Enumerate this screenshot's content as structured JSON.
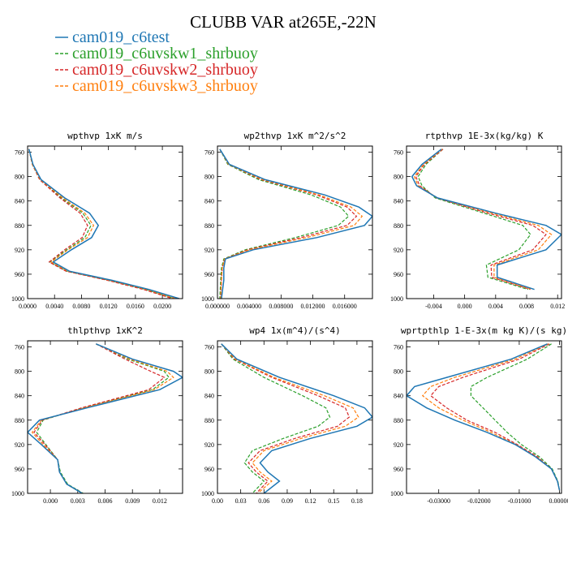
{
  "figure": {
    "title": "CLUBB VAR at265E,-22N",
    "legend": [
      {
        "label": "cam019_c6test",
        "color": "#1f77b4",
        "dash": "solid"
      },
      {
        "label": "cam019_c6uvskw1_shrbuoy",
        "color": "#2ca02c",
        "dash": "dash"
      },
      {
        "label": "cam019_c6uvskw2_shrbuoy",
        "color": "#d62728",
        "dash": "dash"
      },
      {
        "label": "cam019_c6uvskw3_shrbuoy",
        "color": "#ff7f0e",
        "dash": "dash"
      }
    ]
  },
  "chart_data": [
    {
      "type": "line",
      "title": "wpthvp 1xK m/s",
      "xlim": [
        0,
        0.023
      ],
      "ylim": [
        1000,
        750
      ],
      "xticks": [
        "0.0000",
        "0.0040",
        "0.0080",
        "0.0120",
        "0.0160",
        "0.0200"
      ],
      "xtick_values": [
        0,
        0.004,
        0.008,
        0.012,
        0.016,
        0.02
      ],
      "yticks": [
        760,
        800,
        840,
        880,
        920,
        960,
        1000
      ],
      "y": [
        755,
        780,
        805,
        835,
        860,
        880,
        900,
        920,
        940,
        955,
        970,
        985,
        1000
      ],
      "series": [
        {
          "values": [
            0.0002,
            0.0008,
            0.002,
            0.0055,
            0.0092,
            0.0105,
            0.0095,
            0.0065,
            0.0038,
            0.0062,
            0.0125,
            0.018,
            0.0225
          ]
        },
        {
          "values": [
            0.0002,
            0.0007,
            0.0018,
            0.005,
            0.0082,
            0.0094,
            0.0085,
            0.0058,
            0.0033,
            0.0058,
            0.012,
            0.0175,
            0.0218
          ]
        },
        {
          "values": [
            0.0002,
            0.0007,
            0.0018,
            0.0048,
            0.0078,
            0.0089,
            0.0081,
            0.0055,
            0.0032,
            0.0057,
            0.0118,
            0.0172,
            0.0215
          ]
        },
        {
          "values": [
            0.0002,
            0.0007,
            0.0019,
            0.0052,
            0.0085,
            0.0098,
            0.0089,
            0.006,
            0.0035,
            0.006,
            0.0122,
            0.0177,
            0.022
          ]
        }
      ]
    },
    {
      "type": "line",
      "title": "wp2thvp 1xK m^2/s^2",
      "xlim": [
        0,
        0.0195
      ],
      "ylim": [
        1000,
        750
      ],
      "xticks": [
        "0.000000",
        "0.004000",
        "0.008000",
        "0.012000",
        "0.016000"
      ],
      "xtick_values": [
        0,
        0.004,
        0.008,
        0.012,
        0.016
      ],
      "yticks": [
        760,
        800,
        840,
        880,
        920,
        960,
        1000
      ],
      "y": [
        755,
        780,
        805,
        830,
        850,
        865,
        880,
        900,
        920,
        935,
        950,
        970,
        1000
      ],
      "series": [
        {
          "values": [
            0.0003,
            0.0015,
            0.006,
            0.0135,
            0.0178,
            0.0195,
            0.0185,
            0.0125,
            0.0045,
            0.001,
            0.0008,
            0.0008,
            0.0005
          ]
        },
        {
          "values": [
            0.0003,
            0.0013,
            0.0052,
            0.0118,
            0.0155,
            0.0165,
            0.0152,
            0.0098,
            0.0035,
            0.0008,
            0.0005,
            0.0004,
            0.0003
          ]
        },
        {
          "values": [
            0.0003,
            0.0014,
            0.0055,
            0.0125,
            0.0163,
            0.0175,
            0.0163,
            0.0105,
            0.0038,
            0.0009,
            0.0006,
            0.0005,
            0.0004
          ]
        },
        {
          "values": [
            0.0003,
            0.0014,
            0.0057,
            0.0128,
            0.0168,
            0.0182,
            0.0172,
            0.0112,
            0.004,
            0.0009,
            0.0006,
            0.0005,
            0.0004
          ]
        }
      ]
    },
    {
      "type": "line",
      "title": "rtpthvp 1E-3x(kg/kg) K",
      "xlim": [
        -0.0075,
        0.0125
      ],
      "ylim": [
        1000,
        750
      ],
      "xticks": [
        "-0.004",
        "0.000",
        "0.004",
        "0.008",
        "0.012"
      ],
      "xtick_values": [
        -0.004,
        0,
        0.004,
        0.008,
        0.012
      ],
      "yticks": [
        760,
        800,
        840,
        880,
        920,
        960,
        1000
      ],
      "y": [
        755,
        780,
        800,
        815,
        835,
        860,
        880,
        895,
        920,
        945,
        965,
        985
      ],
      "series": [
        {
          "values": [
            -0.003,
            -0.0055,
            -0.0068,
            -0.0062,
            -0.0035,
            0.004,
            0.0105,
            0.0125,
            0.0105,
            0.0042,
            0.0042,
            0.009
          ]
        },
        {
          "values": [
            -0.0028,
            -0.005,
            -0.006,
            -0.0055,
            -0.0038,
            0.0025,
            0.0075,
            0.0085,
            0.007,
            0.0028,
            0.003,
            0.0082
          ]
        },
        {
          "values": [
            -0.0028,
            -0.0052,
            -0.0063,
            -0.0058,
            -0.0036,
            0.003,
            0.0088,
            0.0105,
            0.0088,
            0.0034,
            0.0035,
            0.0085
          ]
        },
        {
          "values": [
            -0.0029,
            -0.0053,
            -0.0065,
            -0.006,
            -0.0035,
            0.0035,
            0.0095,
            0.0112,
            0.0095,
            0.0038,
            0.0038,
            0.0087
          ]
        }
      ]
    },
    {
      "type": "line",
      "title": "thlpthvp 1xK^2",
      "xlim": [
        -0.0025,
        0.0145
      ],
      "ylim": [
        1000,
        750
      ],
      "xticks": [
        "0.000",
        "0.003",
        "0.006",
        "0.009",
        "0.012"
      ],
      "xtick_values": [
        0,
        0.003,
        0.006,
        0.009,
        0.012
      ],
      "yticks": [
        760,
        800,
        840,
        880,
        920,
        960,
        1000
      ],
      "y": [
        755,
        780,
        800,
        810,
        830,
        860,
        880,
        900,
        920,
        945,
        965,
        985,
        1000
      ],
      "series": [
        {
          "values": [
            0.005,
            0.009,
            0.0135,
            0.0145,
            0.012,
            0.004,
            -0.0012,
            -0.0025,
            -0.001,
            0.0008,
            0.001,
            0.0018,
            0.0035
          ]
        },
        {
          "values": [
            0.005,
            0.0085,
            0.0125,
            0.013,
            0.0112,
            0.0035,
            -0.0008,
            -0.0015,
            -0.0005,
            0.0008,
            0.0011,
            0.0019,
            0.0036
          ]
        },
        {
          "values": [
            0.005,
            0.0082,
            0.011,
            0.0125,
            0.0108,
            0.0034,
            -0.0009,
            -0.0018,
            -0.0006,
            0.0008,
            0.001,
            0.0018,
            0.0035
          ]
        },
        {
          "values": [
            0.005,
            0.0087,
            0.0128,
            0.0135,
            0.0114,
            0.0037,
            -0.001,
            -0.002,
            -0.0008,
            0.0008,
            0.001,
            0.0018,
            0.0035
          ]
        }
      ]
    },
    {
      "type": "line",
      "title": "wp4 1x(m^4)/(s^4)",
      "xlim": [
        0,
        0.2
      ],
      "ylim": [
        1000,
        750
      ],
      "xticks": [
        "0.00",
        "0.03",
        "0.06",
        "0.09",
        "0.12",
        "0.15",
        "0.18"
      ],
      "xtick_values": [
        0,
        0.03,
        0.06,
        0.09,
        0.12,
        0.15,
        0.18
      ],
      "yticks": [
        760,
        800,
        840,
        880,
        920,
        960,
        1000
      ],
      "y": [
        755,
        780,
        810,
        840,
        860,
        875,
        890,
        910,
        930,
        950,
        965,
        980,
        1000
      ],
      "series": [
        {
          "values": [
            0.005,
            0.025,
            0.08,
            0.15,
            0.19,
            0.2,
            0.18,
            0.12,
            0.07,
            0.055,
            0.065,
            0.08,
            0.06
          ]
        },
        {
          "values": [
            0.005,
            0.02,
            0.06,
            0.11,
            0.14,
            0.145,
            0.13,
            0.085,
            0.045,
            0.035,
            0.045,
            0.06,
            0.045
          ]
        },
        {
          "values": [
            0.005,
            0.022,
            0.07,
            0.13,
            0.165,
            0.17,
            0.155,
            0.1,
            0.055,
            0.04,
            0.05,
            0.065,
            0.05
          ]
        },
        {
          "values": [
            0.005,
            0.023,
            0.073,
            0.138,
            0.175,
            0.182,
            0.165,
            0.108,
            0.06,
            0.045,
            0.055,
            0.07,
            0.052
          ]
        }
      ]
    },
    {
      "type": "line",
      "title": "wprtpthlp 1-E-3x(m kg K)/(s kg)",
      "xlim": [
        -0.038,
        0.0005
      ],
      "ylim": [
        1000,
        750
      ],
      "xticks": [
        "-0.03000",
        "-0.02000",
        "-0.01000",
        "0.00000"
      ],
      "xtick_values": [
        -0.03,
        -0.02,
        -0.01,
        0
      ],
      "yticks": [
        760,
        800,
        840,
        880,
        920,
        960,
        1000
      ],
      "y": [
        755,
        780,
        810,
        825,
        840,
        860,
        880,
        900,
        920,
        940,
        960,
        980,
        995
      ],
      "series": [
        {
          "values": [
            -0.003,
            -0.012,
            -0.028,
            -0.036,
            -0.038,
            -0.033,
            -0.026,
            -0.018,
            -0.011,
            -0.006,
            -0.002,
            -0.0005,
            0
          ]
        },
        {
          "values": [
            -0.002,
            -0.008,
            -0.018,
            -0.022,
            -0.022,
            -0.019,
            -0.016,
            -0.013,
            -0.0095,
            -0.005,
            -0.0018,
            -0.0004,
            0
          ]
        },
        {
          "values": [
            -0.0025,
            -0.01,
            -0.024,
            -0.03,
            -0.032,
            -0.028,
            -0.023,
            -0.016,
            -0.0105,
            -0.0055,
            -0.002,
            -0.0005,
            0
          ]
        },
        {
          "values": [
            -0.0028,
            -0.011,
            -0.026,
            -0.032,
            -0.034,
            -0.03,
            -0.024,
            -0.017,
            -0.0108,
            -0.0058,
            -0.002,
            -0.0005,
            0
          ]
        }
      ]
    }
  ]
}
